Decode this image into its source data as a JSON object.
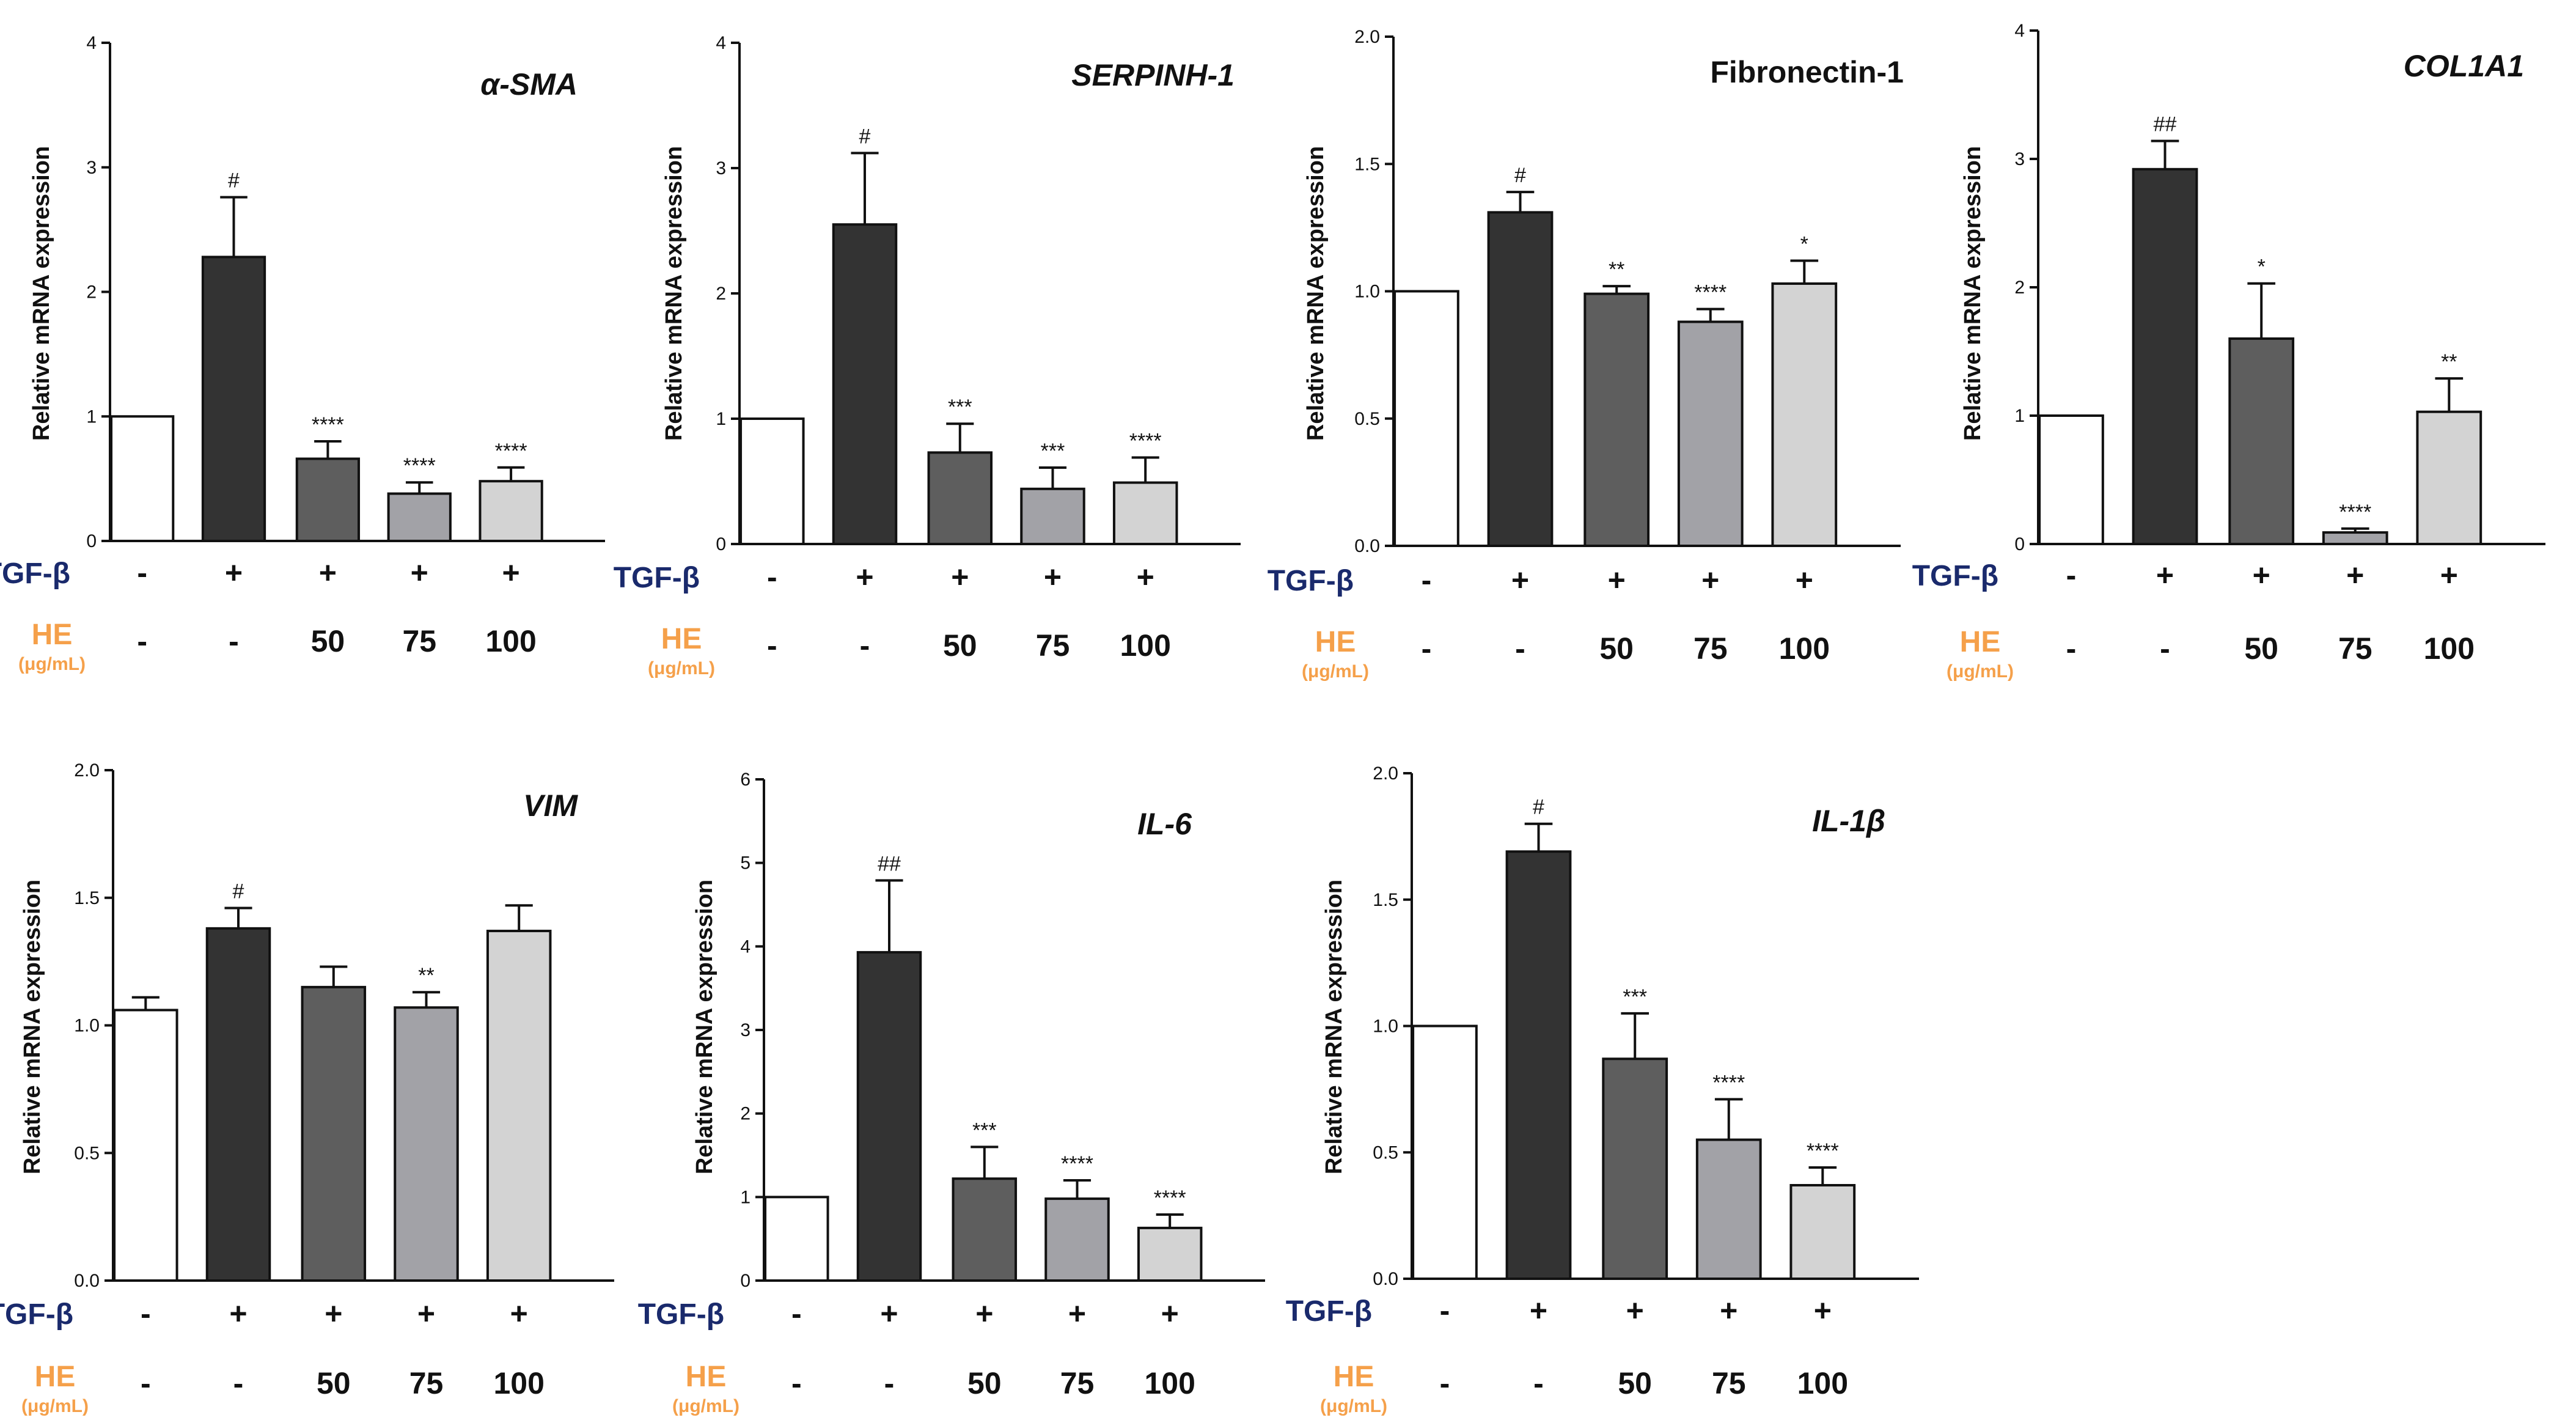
{
  "row_labels": {
    "tgf": "TGF-β",
    "he": "HE",
    "he_unit": "(μg/mL)"
  },
  "colors": {
    "bar_fills": [
      "#ffffff",
      "#333333",
      "#5e5e5e",
      "#a2a2a7",
      "#d3d3d3"
    ],
    "tgf_label": "#1a2a6c",
    "he_label": "#f5a04a",
    "axis": "#111111"
  },
  "chart_data": [
    {
      "type": "bar",
      "title": "α-SMA",
      "title_italic": true,
      "ylabel": "Relative mRNA expression",
      "ylim": [
        0,
        4
      ],
      "yticks": [
        "0",
        "1",
        "2",
        "3",
        "4"
      ],
      "tgf": [
        "-",
        "+",
        "+",
        "+",
        "+"
      ],
      "he": [
        "-",
        "-",
        "50",
        "75",
        "100"
      ],
      "values": [
        1.0,
        2.28,
        0.66,
        0.38,
        0.48
      ],
      "errors": [
        0,
        0.48,
        0.14,
        0.09,
        0.11
      ],
      "significance": [
        "",
        "#",
        "****",
        "****",
        "****"
      ]
    },
    {
      "type": "bar",
      "title": "SERPINH-1",
      "title_italic": true,
      "ylabel": "Relative mRNA expression",
      "ylim": [
        0,
        4
      ],
      "yticks": [
        "0",
        "1",
        "2",
        "3",
        "4"
      ],
      "tgf": [
        "-",
        "+",
        "+",
        "+",
        "+"
      ],
      "he": [
        "-",
        "-",
        "50",
        "75",
        "100"
      ],
      "values": [
        1.0,
        2.55,
        0.73,
        0.44,
        0.49
      ],
      "errors": [
        0,
        0.57,
        0.23,
        0.17,
        0.2
      ],
      "significance": [
        "",
        "#",
        "***",
        "***",
        "****"
      ]
    },
    {
      "type": "bar",
      "title": "Fibronectin-1",
      "title_italic": false,
      "ylabel": "Relative mRNA expression",
      "ylim": [
        0,
        2
      ],
      "yticks": [
        "0.0",
        "0.5",
        "1.0",
        "1.5",
        "2.0"
      ],
      "tgf": [
        "-",
        "+",
        "+",
        "+",
        "+"
      ],
      "he": [
        "-",
        "-",
        "50",
        "75",
        "100"
      ],
      "values": [
        1.0,
        1.31,
        0.99,
        0.88,
        1.03
      ],
      "errors": [
        0,
        0.08,
        0.03,
        0.05,
        0.09
      ],
      "significance": [
        "",
        "#",
        "**",
        "****",
        "*"
      ]
    },
    {
      "type": "bar",
      "title": "COL1A1",
      "title_italic": true,
      "ylabel": "Relative mRNA expression",
      "ylim": [
        0,
        4
      ],
      "yticks": [
        "0",
        "1",
        "2",
        "3",
        "4"
      ],
      "tgf": [
        "-",
        "+",
        "+",
        "+",
        "+"
      ],
      "he": [
        "-",
        "-",
        "50",
        "75",
        "100"
      ],
      "values": [
        1.0,
        2.92,
        1.6,
        0.09,
        1.03
      ],
      "errors": [
        0,
        0.22,
        0.43,
        0.03,
        0.26
      ],
      "significance": [
        "",
        "##",
        "*",
        "****",
        "**"
      ]
    },
    {
      "type": "bar",
      "title": "VIM",
      "title_italic": true,
      "ylabel": "Relative mRNA expression",
      "ylim": [
        0,
        2
      ],
      "yticks": [
        "0.0",
        "0.5",
        "1.0",
        "1.5",
        "2.0"
      ],
      "tgf": [
        "-",
        "+",
        "+",
        "+",
        "+"
      ],
      "he": [
        "-",
        "-",
        "50",
        "75",
        "100"
      ],
      "values": [
        1.06,
        1.38,
        1.15,
        1.07,
        1.37
      ],
      "errors": [
        0.05,
        0.08,
        0.08,
        0.06,
        0.1
      ],
      "significance": [
        "",
        "#",
        "",
        "**",
        ""
      ]
    },
    {
      "type": "bar",
      "title": "IL-6",
      "title_italic": true,
      "ylabel": "Relative mRNA expression",
      "ylim": [
        0,
        6
      ],
      "yticks": [
        "0",
        "1",
        "2",
        "3",
        "4",
        "5",
        "6"
      ],
      "tgf": [
        "-",
        "+",
        "+",
        "+",
        "+"
      ],
      "he": [
        "-",
        "-",
        "50",
        "75",
        "100"
      ],
      "values": [
        1.0,
        3.93,
        1.22,
        0.98,
        0.63
      ],
      "errors": [
        0,
        0.86,
        0.38,
        0.22,
        0.16
      ],
      "significance": [
        "",
        "##",
        "***",
        "****",
        "****"
      ]
    },
    {
      "type": "bar",
      "title": "IL-1β",
      "title_italic": true,
      "ylabel": "Relative mRNA expression",
      "ylim": [
        0,
        2
      ],
      "yticks": [
        "0.0",
        "0.5",
        "1.0",
        "1.5",
        "2.0"
      ],
      "tgf": [
        "-",
        "+",
        "+",
        "+",
        "+"
      ],
      "he": [
        "-",
        "-",
        "50",
        "75",
        "100"
      ],
      "values": [
        1.0,
        1.69,
        0.87,
        0.55,
        0.37
      ],
      "errors": [
        0,
        0.11,
        0.18,
        0.16,
        0.07
      ],
      "significance": [
        "",
        "#",
        "***",
        "****",
        "****"
      ]
    }
  ]
}
